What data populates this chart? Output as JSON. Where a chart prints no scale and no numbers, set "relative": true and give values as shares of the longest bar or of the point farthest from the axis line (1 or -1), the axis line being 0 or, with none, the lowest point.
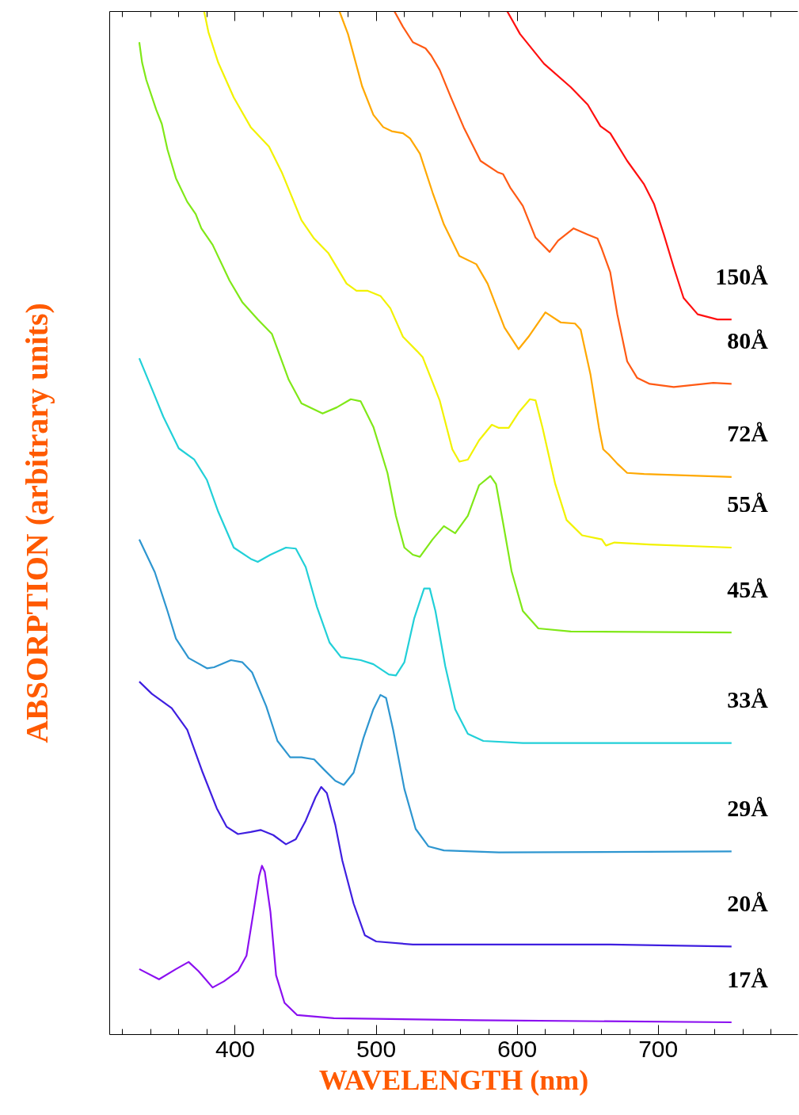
{
  "chart_data": {
    "type": "line",
    "relative": true,
    "xlabel": "WAVELENGTH (nm)",
    "ylabel": "ABSORPTION (arbitrary units)",
    "xlim": [
      311,
      799
    ],
    "xticks": [
      {
        "value": 320,
        "label": null
      },
      {
        "value": 340,
        "label": null
      },
      {
        "value": 360,
        "label": null
      },
      {
        "value": 380,
        "label": null
      },
      400,
      {
        "value": 420,
        "label": null
      },
      {
        "value": 440,
        "label": null
      },
      {
        "value": 460,
        "label": null
      },
      {
        "value": 480,
        "label": null
      },
      500,
      {
        "value": 520,
        "label": null
      },
      {
        "value": 540,
        "label": null
      },
      {
        "value": 560,
        "label": null
      },
      {
        "value": 580,
        "label": null
      },
      600,
      {
        "value": 620,
        "label": null
      },
      {
        "value": 640,
        "label": null
      },
      {
        "value": 660,
        "label": null
      },
      {
        "value": 680,
        "label": null
      },
      700,
      {
        "value": 720,
        "label": null
      },
      {
        "value": 740,
        "label": null
      },
      {
        "value": 760,
        "label": null
      },
      {
        "value": 780,
        "label": null
      }
    ],
    "series": [
      {
        "name": "150Å",
        "color": "#ff1010",
        "x": [
          593,
          602,
          619,
          638,
          650,
          659,
          666,
          678,
          690,
          697,
          704,
          711,
          718,
          728,
          742,
          752
        ],
        "values": [
          1.0,
          0.978,
          0.949,
          0.926,
          0.909,
          0.888,
          0.881,
          0.854,
          0.831,
          0.812,
          0.782,
          0.75,
          0.72,
          0.704,
          0.699,
          0.699
        ]
      },
      {
        "name": "80Å",
        "color": "#ff5a14",
        "x": [
          513,
          519,
          526,
          535,
          539,
          545,
          553,
          562,
          574,
          586,
          590,
          595,
          604,
          613,
          623,
          629,
          640,
          650,
          657,
          660,
          666,
          671,
          678,
          685,
          694,
          711,
          739,
          752
        ],
        "values": [
          1.0,
          0.985,
          0.97,
          0.964,
          0.957,
          0.943,
          0.916,
          0.887,
          0.854,
          0.843,
          0.841,
          0.828,
          0.81,
          0.779,
          0.765,
          0.776,
          0.788,
          0.782,
          0.778,
          0.768,
          0.745,
          0.704,
          0.658,
          0.642,
          0.636,
          0.633,
          0.637,
          0.636
        ]
      },
      {
        "name": "72Å",
        "color": "#ffa800",
        "x": [
          474,
          480,
          490,
          498,
          505,
          511,
          519,
          524,
          531,
          540,
          548,
          559,
          571,
          579,
          591,
          601,
          608,
          620,
          631,
          641,
          645,
          652,
          658,
          661,
          665,
          671,
          678,
          690,
          752
        ],
        "values": [
          1.0,
          0.978,
          0.927,
          0.899,
          0.887,
          0.883,
          0.881,
          0.876,
          0.861,
          0.823,
          0.792,
          0.761,
          0.753,
          0.734,
          0.691,
          0.67,
          0.682,
          0.706,
          0.696,
          0.695,
          0.689,
          0.645,
          0.593,
          0.572,
          0.567,
          0.558,
          0.549,
          0.548,
          0.545
        ]
      },
      {
        "name": "55Å",
        "color": "#f2f200",
        "x": [
          378,
          381,
          388,
          399,
          411,
          424,
          433,
          447,
          456,
          466,
          479,
          486,
          494,
          503,
          510,
          519,
          529,
          533,
          545,
          554,
          559,
          565,
          573,
          582,
          587,
          594,
          601,
          609,
          613,
          618,
          627,
          635,
          646,
          660,
          663,
          669,
          694,
          752
        ],
        "values": [
          1.0,
          0.98,
          0.95,
          0.916,
          0.887,
          0.868,
          0.843,
          0.796,
          0.778,
          0.764,
          0.734,
          0.727,
          0.727,
          0.722,
          0.71,
          0.682,
          0.668,
          0.662,
          0.62,
          0.572,
          0.56,
          0.562,
          0.581,
          0.596,
          0.593,
          0.593,
          0.608,
          0.621,
          0.62,
          0.593,
          0.538,
          0.503,
          0.488,
          0.484,
          0.478,
          0.481,
          0.479,
          0.476
        ]
      },
      {
        "name": "45Å",
        "color": "#80e818",
        "x": [
          332,
          334,
          337,
          344,
          348,
          352,
          358,
          366,
          372,
          376,
          384,
          396,
          405,
          416,
          426,
          438,
          447,
          462,
          472,
          482,
          489,
          498,
          508,
          514,
          520,
          526,
          531,
          540,
          548,
          556,
          565,
          573,
          581,
          585,
          590,
          596,
          604,
          615,
          638,
          752
        ],
        "values": [
          0.97,
          0.95,
          0.933,
          0.904,
          0.89,
          0.865,
          0.837,
          0.814,
          0.802,
          0.788,
          0.772,
          0.737,
          0.716,
          0.699,
          0.685,
          0.64,
          0.617,
          0.607,
          0.613,
          0.621,
          0.619,
          0.594,
          0.549,
          0.507,
          0.476,
          0.469,
          0.467,
          0.484,
          0.497,
          0.49,
          0.507,
          0.537,
          0.546,
          0.538,
          0.5,
          0.453,
          0.414,
          0.397,
          0.394,
          0.393
        ]
      },
      {
        "name": "33Å",
        "color": "#22d0d8",
        "x": [
          332,
          341,
          349,
          360,
          371,
          380,
          388,
          399,
          411,
          416,
          425,
          436,
          443,
          450,
          458,
          467,
          475,
          489,
          498,
          509,
          514,
          520,
          527,
          534,
          538,
          542,
          549,
          556,
          565,
          576,
          604,
          752
        ],
        "values": [
          0.661,
          0.631,
          0.604,
          0.573,
          0.562,
          0.542,
          0.511,
          0.476,
          0.465,
          0.462,
          0.469,
          0.476,
          0.475,
          0.457,
          0.418,
          0.383,
          0.369,
          0.366,
          0.362,
          0.352,
          0.351,
          0.364,
          0.407,
          0.436,
          0.436,
          0.414,
          0.36,
          0.318,
          0.294,
          0.287,
          0.285,
          0.285
        ]
      },
      {
        "name": "29Å",
        "color": "#2e96d0",
        "x": [
          332,
          343,
          352,
          358,
          367,
          380,
          385,
          397,
          405,
          412,
          422,
          430,
          439,
          447,
          456,
          463,
          471,
          477,
          484,
          491,
          498,
          503,
          507,
          512,
          520,
          528,
          537,
          548,
          587,
          752
        ],
        "values": [
          0.484,
          0.452,
          0.414,
          0.387,
          0.368,
          0.358,
          0.359,
          0.366,
          0.364,
          0.354,
          0.321,
          0.287,
          0.271,
          0.271,
          0.269,
          0.259,
          0.248,
          0.244,
          0.256,
          0.29,
          0.318,
          0.332,
          0.329,
          0.298,
          0.24,
          0.201,
          0.184,
          0.18,
          0.178,
          0.179
        ]
      },
      {
        "name": "20Å",
        "color": "#3f1fe0",
        "x": [
          332,
          341,
          355,
          366,
          377,
          387,
          394,
          402,
          411,
          418,
          427,
          436,
          443,
          450,
          457,
          461,
          465,
          471,
          476,
          484,
          492,
          500,
          526,
          627,
          666,
          752
        ],
        "values": [
          0.345,
          0.333,
          0.319,
          0.298,
          0.256,
          0.221,
          0.203,
          0.196,
          0.198,
          0.2,
          0.195,
          0.186,
          0.191,
          0.209,
          0.232,
          0.242,
          0.236,
          0.205,
          0.17,
          0.128,
          0.097,
          0.091,
          0.088,
          0.088,
          0.088,
          0.086
        ]
      },
      {
        "name": "17Å",
        "color": "#8b10f0",
        "x": [
          332,
          346,
          358,
          367,
          374,
          384,
          392,
          402,
          408,
          413,
          417,
          419,
          421,
          425,
          429,
          435,
          444,
          470,
          570,
          752
        ],
        "values": [
          0.064,
          0.054,
          0.064,
          0.071,
          0.062,
          0.046,
          0.052,
          0.062,
          0.077,
          0.12,
          0.155,
          0.165,
          0.159,
          0.12,
          0.058,
          0.031,
          0.019,
          0.016,
          0.014,
          0.012
        ]
      }
    ]
  }
}
